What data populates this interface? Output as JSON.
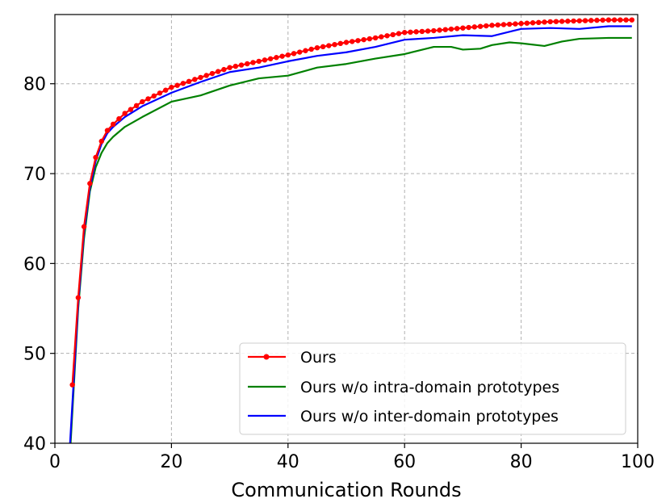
{
  "chart_data": {
    "type": "line",
    "title": "",
    "xlabel": "Communication Rounds",
    "ylabel": "",
    "xlim": [
      0,
      100
    ],
    "ylim": [
      40,
      88
    ],
    "xticks": [
      0,
      20,
      40,
      60,
      80,
      100
    ],
    "yticks": [
      40,
      50,
      60,
      70,
      80
    ],
    "xtick_labels": [
      "0",
      "20",
      "40",
      "60",
      "80",
      "100"
    ],
    "ytick_labels": [
      "40",
      "50",
      "60",
      "70",
      "80"
    ],
    "grid": true,
    "legend_position": "lower-right",
    "series": [
      {
        "name": "Ours",
        "color": "#ff0000",
        "marker": "dot",
        "x": [
          3,
          4,
          5,
          6,
          7,
          8,
          9,
          10,
          12,
          15,
          20,
          25,
          30,
          35,
          40,
          45,
          50,
          55,
          60,
          65,
          70,
          75,
          80,
          85,
          90,
          95,
          99
        ],
        "y": [
          46.5,
          56.2,
          64.1,
          68.9,
          71.8,
          73.6,
          74.8,
          75.5,
          76.7,
          78.0,
          79.6,
          80.7,
          81.8,
          82.5,
          83.2,
          84.0,
          84.6,
          85.1,
          85.7,
          85.9,
          86.2,
          86.5,
          86.7,
          86.9,
          87.0,
          87.1,
          87.1
        ]
      },
      {
        "name": "Ours w/o intra-domain prototypes",
        "color": "#008000",
        "marker": "none",
        "x": [
          2.7,
          4,
          5,
          6,
          7,
          8,
          9,
          10,
          12,
          15,
          20,
          25,
          30,
          35,
          40,
          45,
          50,
          55,
          60,
          65,
          68,
          70,
          73,
          75,
          78,
          80,
          84,
          87,
          90,
          95,
          99
        ],
        "y": [
          40,
          55.0,
          62.8,
          68.0,
          70.7,
          72.3,
          73.4,
          74.1,
          75.2,
          76.3,
          78.0,
          78.7,
          79.8,
          80.6,
          80.9,
          81.8,
          82.2,
          82.8,
          83.3,
          84.1,
          84.1,
          83.8,
          83.9,
          84.3,
          84.6,
          84.5,
          84.2,
          84.7,
          85.0,
          85.1,
          85.1
        ]
      },
      {
        "name": "Ours w/o inter-domain prototypes",
        "color": "#0000ff",
        "marker": "none",
        "x": [
          2.6,
          4,
          5,
          6,
          7,
          8,
          9,
          10,
          12,
          15,
          20,
          25,
          30,
          35,
          40,
          45,
          50,
          55,
          60,
          65,
          70,
          75,
          80,
          85,
          90,
          95,
          99
        ],
        "y": [
          40,
          55.5,
          63.5,
          68.4,
          71.4,
          73.3,
          74.5,
          75.2,
          76.3,
          77.5,
          79.0,
          80.2,
          81.3,
          81.8,
          82.5,
          83.1,
          83.5,
          84.1,
          84.9,
          85.1,
          85.4,
          85.3,
          86.1,
          86.2,
          86.1,
          86.4,
          86.4
        ]
      }
    ]
  }
}
